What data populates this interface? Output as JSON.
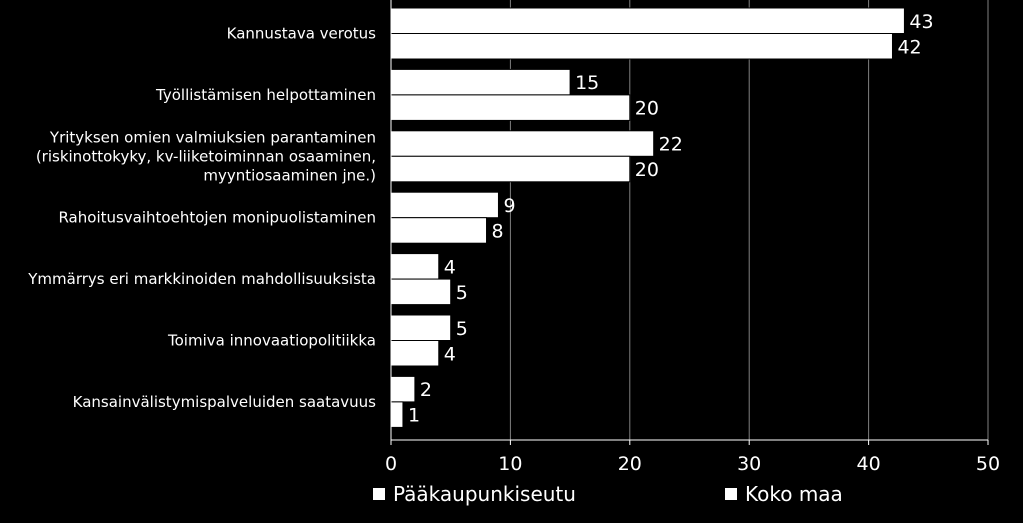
{
  "chart_data": {
    "type": "bar",
    "orientation": "horizontal",
    "categories": [
      "Kannustava verotus",
      "Työllistämisen helpottaminen",
      "Yrityksen omien valmiuksien parantaminen\n(riskinottokyky, kv-liiketoiminnan osaaminen,\nmyyntiosaaminen jne.)",
      "Rahoitusvaihtoehtojen monipuolistaminen",
      "Ymmärrys eri markkinoiden mahdollisuuksista",
      "Toimiva innovaatiopolitiikka",
      "Kansainvälistymispalveluiden saatavuus"
    ],
    "series": [
      {
        "name": "Pääkaupunkiseutu",
        "values": [
          43,
          15,
          22,
          9,
          4,
          5,
          2
        ]
      },
      {
        "name": "Koko maa",
        "values": [
          42,
          20,
          20,
          8,
          5,
          4,
          1
        ]
      }
    ],
    "xlim": [
      0,
      50
    ],
    "xticks": [
      "0",
      "10",
      "20",
      "30",
      "40",
      "50"
    ],
    "grid": true,
    "legend_position": "bottom",
    "colors": {
      "background": "#000000",
      "bar": "#ffffff",
      "bar_outline": "#000000",
      "grid": "#808080",
      "text": "#ffffff"
    }
  }
}
